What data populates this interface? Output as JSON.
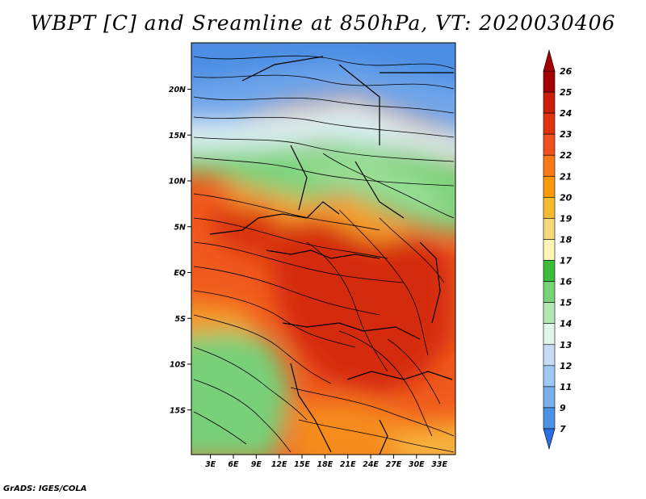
{
  "title": "WBPT [C] and Sreamline at 850hPa, VT: 2020030406",
  "credit": "GrADS: IGES/COLA",
  "map": {
    "lat_ticks": [
      {
        "label": "20N",
        "lat": 20
      },
      {
        "label": "15N",
        "lat": 15
      },
      {
        "label": "10N",
        "lat": 10
      },
      {
        "label": "5N",
        "lat": 5
      },
      {
        "label": "EQ",
        "lat": 0
      },
      {
        "label": "5S",
        "lat": -5
      },
      {
        "label": "10S",
        "lat": -10
      },
      {
        "label": "15S",
        "lat": -15
      }
    ],
    "lon_ticks": [
      {
        "label": "3E",
        "lon": 3
      },
      {
        "label": "6E",
        "lon": 6
      },
      {
        "label": "9E",
        "lon": 9
      },
      {
        "label": "12E",
        "lon": 12
      },
      {
        "label": "15E",
        "lon": 15
      },
      {
        "label": "18E",
        "lon": 18
      },
      {
        "label": "21E",
        "lon": 21
      },
      {
        "label": "24E",
        "lon": 24
      },
      {
        "label": "27E",
        "lon": 27
      },
      {
        "label": "30E",
        "lon": 30
      },
      {
        "label": "33E",
        "lon": 33
      }
    ]
  },
  "colorbar": {
    "labels": [
      "26",
      "25",
      "24",
      "23",
      "22",
      "21",
      "20",
      "19",
      "18",
      "17",
      "16",
      "15",
      "14",
      "13",
      "12",
      "11",
      "9",
      "7"
    ],
    "colors": [
      "#a50000",
      "#c81e0a",
      "#e1320f",
      "#f0501e",
      "#fa7814",
      "#fa9a0a",
      "#f5b932",
      "#f5d77d",
      "#fff5b4",
      "#3cbe3c",
      "#78d278",
      "#b4e6b4",
      "#e1f5eb",
      "#c8dcf5",
      "#a0c8f5",
      "#78afeb",
      "#4b91e6",
      "#2d6ee1"
    ]
  }
}
